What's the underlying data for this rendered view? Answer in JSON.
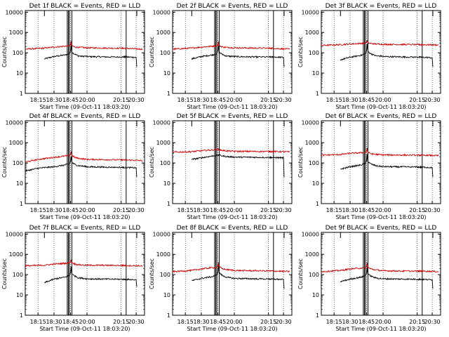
{
  "panel_titles": [
    "Det 1f BLACK = Events, RED = LLD",
    "Det 2f BLACK = Events, RED = LLD",
    "Det 3f BLACK = Events, RED = LLD",
    "Det 4f BLACK = Events, RED = LLD",
    "Det 5f BLACK = Events, RED = LLD",
    "Det 6f BLACK = Events, RED = LLD",
    "Det 7f BLACK = Events, RED = LLD",
    "Det 8f BLACK = Events, RED = LLD",
    "Det 9f BLACK = Events, RED = LLD"
  ],
  "ylabel": "Counts/sec",
  "xlabel": "Start Time (09-Oct-11 18:03:20)",
  "x_ticks": [
    "18:15",
    "18:30",
    "18:45",
    "20:00",
    "20:15",
    "20:30"
  ],
  "y_ticks": [
    "1",
    "10",
    "100",
    "1000",
    "10000"
  ],
  "colors": {
    "events": "#000000",
    "lld": "#cc0000"
  },
  "chart_data": {
    "type": "line",
    "scale": {
      "y": "log"
    },
    "xlim": [
      "18:03:20",
      "20:43:20"
    ],
    "ylim": [
      1,
      12000
    ],
    "grid": {
      "vertical_dotted_at": [
        "18:15",
        "18:30",
        "18:45",
        "20:00",
        "20:15",
        "20:30"
      ]
    },
    "markers": {
      "vertical_lines": [
        "18:42:00",
        "18:43:00",
        "18:44:00",
        "18:51:00",
        "20:20:00"
      ],
      "x_start": "18:21:00",
      "x_end": "20:31:00"
    },
    "panels": [
      {
        "series": [
          {
            "name": "BLACK = Events",
            "x": [
              "18:21",
              "18:30",
              "18:40",
              "18:44",
              "18:47",
              "18:50",
              "19:00",
              "19:10",
              "19:20",
              "19:30",
              "19:40",
              "19:50",
              "20:00",
              "20:10",
              "20:20",
              "20:28",
              "20:30",
              "20:31"
            ],
            "y": [
              50,
              65,
              78,
              90,
              240,
              110,
              90,
              80,
              70,
              68,
              66,
              68,
              65,
              62,
              62,
              60,
              58,
              20
            ]
          },
          {
            "name": "RED = LLD",
            "x": [
              "18:03",
              "18:21",
              "18:30",
              "18:40",
              "18:44",
              "18:47",
              "18:50",
              "19:00",
              "19:10",
              "19:20",
              "19:30",
              "19:40",
              "19:50",
              "20:00",
              "20:10",
              "20:20",
              "20:30",
              "20:40"
            ],
            "y": [
              150,
              170,
              190,
              210,
              220,
              380,
              230,
              200,
              190,
              185,
              180,
              185,
              175,
              175,
              170,
              165,
              155,
              150
            ]
          }
        ]
      },
      {
        "series": [
          {
            "name": "BLACK = Events",
            "x": [
              "18:21",
              "18:30",
              "18:40",
              "18:44",
              "18:47",
              "18:50",
              "19:00",
              "19:10",
              "19:20",
              "19:30",
              "19:40",
              "19:50",
              "20:00",
              "20:10",
              "20:20",
              "20:28",
              "20:30",
              "20:31"
            ],
            "y": [
              50,
              65,
              78,
              90,
              240,
              110,
              90,
              80,
              70,
              68,
              66,
              68,
              65,
              62,
              62,
              60,
              58,
              20
            ]
          },
          {
            "name": "RED = LLD",
            "x": [
              "18:03",
              "18:21",
              "18:30",
              "18:40",
              "18:44",
              "18:47",
              "18:50",
              "19:00",
              "19:10",
              "19:20",
              "19:30",
              "19:40",
              "19:50",
              "20:00",
              "20:10",
              "20:20",
              "20:30",
              "20:40"
            ],
            "y": [
              150,
              170,
              190,
              210,
              220,
              350,
              230,
              200,
              190,
              185,
              180,
              185,
              175,
              175,
              170,
              165,
              155,
              150
            ]
          }
        ]
      },
      {
        "series": [
          {
            "name": "BLACK = Events",
            "x": [
              "18:21",
              "18:30",
              "18:40",
              "18:44",
              "18:47",
              "18:50",
              "19:00",
              "19:10",
              "19:20",
              "19:30",
              "19:40",
              "19:50",
              "20:00",
              "20:10",
              "20:20",
              "20:28",
              "20:30",
              "20:31"
            ],
            "y": [
              45,
              60,
              75,
              90,
              280,
              120,
              95,
              85,
              75,
              70,
              68,
              70,
              65,
              62,
              60,
              58,
              55,
              20
            ]
          },
          {
            "name": "RED = LLD",
            "x": [
              "18:03",
              "18:21",
              "18:30",
              "18:40",
              "18:44",
              "18:47",
              "18:50",
              "19:00",
              "19:10",
              "19:20",
              "19:30",
              "19:40",
              "19:50",
              "20:00",
              "20:10",
              "20:20",
              "20:30",
              "20:40"
            ],
            "y": [
              230,
              250,
              270,
              290,
              300,
              400,
              310,
              290,
              280,
              275,
              270,
              270,
              265,
              260,
              255,
              250,
              245,
              240
            ]
          }
        ]
      },
      {
        "series": [
          {
            "name": "BLACK = Events",
            "x": [
              "18:03",
              "18:15",
              "18:30",
              "18:40",
              "18:44",
              "18:47",
              "18:50",
              "19:00",
              "19:10",
              "19:20",
              "19:30",
              "19:40",
              "19:50",
              "20:00",
              "20:10",
              "20:20",
              "20:30",
              "20:31"
            ],
            "y": [
              40,
              55,
              65,
              80,
              90,
              220,
              110,
              90,
              80,
              75,
              72,
              70,
              68,
              65,
              62,
              60,
              58,
              20
            ]
          },
          {
            "name": "RED = LLD",
            "x": [
              "18:03",
              "18:15",
              "18:30",
              "18:40",
              "18:44",
              "18:47",
              "18:50",
              "19:00",
              "19:10",
              "19:20",
              "19:30",
              "19:40",
              "19:50",
              "20:00",
              "20:10",
              "20:20",
              "20:30",
              "20:40"
            ],
            "y": [
              110,
              150,
              190,
              220,
              230,
              380,
              240,
              200,
              180,
              170,
              165,
              160,
              155,
              150,
              145,
              140,
              135,
              130
            ]
          }
        ]
      },
      {
        "series": [
          {
            "name": "BLACK = Events",
            "x": [
              "18:21",
              "18:30",
              "18:40",
              "18:44",
              "18:47",
              "18:50",
              "19:00",
              "19:10",
              "19:20",
              "19:30",
              "19:40",
              "19:50",
              "20:00",
              "20:10",
              "20:20",
              "20:30",
              "20:31"
            ],
            "y": [
              150,
              180,
              220,
              240,
              245,
              240,
              230,
              220,
              210,
              205,
              200,
              200,
              195,
              190,
              185,
              180,
              20
            ]
          },
          {
            "name": "RED = LLD",
            "x": [
              "18:03",
              "18:21",
              "18:30",
              "18:40",
              "18:44",
              "18:47",
              "18:50",
              "19:00",
              "19:10",
              "19:20",
              "19:30",
              "19:40",
              "19:50",
              "20:00",
              "20:10",
              "20:20",
              "20:30",
              "20:40"
            ],
            "y": [
              340,
              360,
              400,
              440,
              460,
              470,
              450,
              430,
              410,
              400,
              390,
              385,
              380,
              375,
              370,
              365,
              360,
              350
            ]
          }
        ]
      },
      {
        "series": [
          {
            "name": "BLACK = Events",
            "x": [
              "18:21",
              "18:30",
              "18:40",
              "18:44",
              "18:47",
              "18:50",
              "19:00",
              "19:10",
              "19:20",
              "19:30",
              "19:40",
              "19:50",
              "20:00",
              "20:10",
              "20:20",
              "20:28",
              "20:30",
              "20:31"
            ],
            "y": [
              50,
              65,
              80,
              95,
              280,
              120,
              95,
              85,
              78,
              72,
              70,
              68,
              66,
              64,
              62,
              60,
              58,
              20
            ]
          },
          {
            "name": "RED = LLD",
            "x": [
              "18:03",
              "18:21",
              "18:30",
              "18:40",
              "18:44",
              "18:47",
              "18:50",
              "19:00",
              "19:10",
              "19:20",
              "19:30",
              "19:40",
              "19:50",
              "20:00",
              "20:10",
              "20:20",
              "20:30",
              "20:40"
            ],
            "y": [
              240,
              260,
              300,
              320,
              330,
              550,
              340,
              300,
              280,
              270,
              265,
              260,
              255,
              250,
              245,
              240,
              235,
              230
            ]
          }
        ]
      },
      {
        "series": [
          {
            "name": "BLACK = Events",
            "x": [
              "18:21",
              "18:30",
              "18:40",
              "18:44",
              "18:47",
              "18:50",
              "19:00",
              "19:10",
              "19:20",
              "19:30",
              "19:40",
              "19:50",
              "20:00",
              "20:10",
              "20:20",
              "20:28",
              "20:30",
              "20:31"
            ],
            "y": [
              40,
              60,
              75,
              90,
              250,
              110,
              90,
              80,
              70,
              68,
              66,
              64,
              62,
              60,
              58,
              56,
              55,
              25
            ]
          },
          {
            "name": "RED = LLD",
            "x": [
              "18:03",
              "18:21",
              "18:30",
              "18:40",
              "18:44",
              "18:47",
              "18:50",
              "19:00",
              "19:10",
              "19:20",
              "19:30",
              "19:40",
              "19:50",
              "20:00",
              "20:10",
              "20:20",
              "20:30",
              "20:40"
            ],
            "y": [
              270,
              290,
              330,
              360,
              380,
              560,
              390,
              350,
              320,
              310,
              300,
              295,
              290,
              290,
              285,
              280,
              275,
              270
            ]
          }
        ]
      },
      {
        "series": [
          {
            "name": "BLACK = Events",
            "x": [
              "18:21",
              "18:30",
              "18:40",
              "18:44",
              "18:47",
              "18:50",
              "19:00",
              "19:10",
              "19:20",
              "19:30",
              "19:40",
              "19:50",
              "20:00",
              "20:10",
              "20:20",
              "20:28",
              "20:30",
              "20:31"
            ],
            "y": [
              50,
              65,
              80,
              95,
              300,
              130,
              100,
              85,
              78,
              72,
              70,
              68,
              65,
              62,
              60,
              58,
              55,
              20
            ]
          },
          {
            "name": "RED = LLD",
            "x": [
              "18:03",
              "18:21",
              "18:30",
              "18:40",
              "18:44",
              "18:47",
              "18:50",
              "19:00",
              "19:10",
              "19:20",
              "19:30",
              "19:40",
              "19:50",
              "20:00",
              "20:10",
              "20:20",
              "20:30",
              "20:40"
            ],
            "y": [
              140,
              160,
              190,
              220,
              230,
              420,
              250,
              210,
              190,
              180,
              175,
              170,
              165,
              160,
              155,
              150,
              145,
              140
            ]
          }
        ]
      },
      {
        "series": [
          {
            "name": "BLACK = Events",
            "x": [
              "18:21",
              "18:30",
              "18:40",
              "18:44",
              "18:47",
              "18:50",
              "19:00",
              "19:10",
              "19:20",
              "19:30",
              "19:40",
              "19:50",
              "20:00",
              "20:10",
              "20:20",
              "20:28",
              "20:30",
              "20:31"
            ],
            "y": [
              45,
              60,
              75,
              90,
              240,
              110,
              90,
              80,
              72,
              68,
              66,
              64,
              62,
              60,
              58,
              56,
              55,
              20
            ]
          },
          {
            "name": "RED = LLD",
            "x": [
              "18:03",
              "18:21",
              "18:30",
              "18:40",
              "18:44",
              "18:47",
              "18:50",
              "19:00",
              "19:10",
              "19:20",
              "19:30",
              "19:40",
              "19:50",
              "20:00",
              "20:10",
              "20:20",
              "20:30",
              "20:40"
            ],
            "y": [
              140,
              160,
              190,
              210,
              220,
              380,
              230,
              200,
              185,
              175,
              170,
              165,
              160,
              155,
              150,
              148,
              145,
              140
            ]
          }
        ]
      }
    ]
  }
}
